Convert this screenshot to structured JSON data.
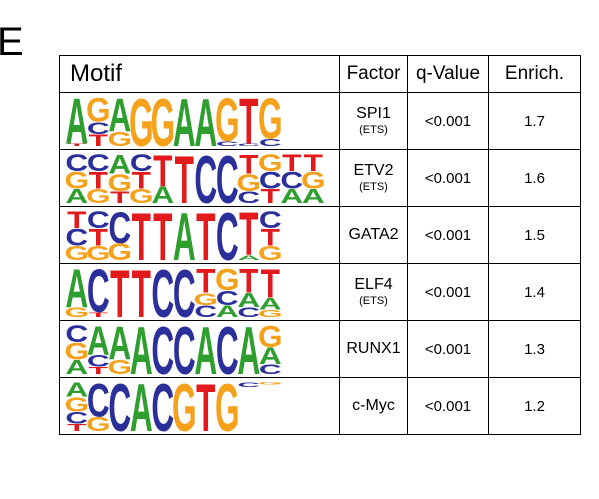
{
  "panel_label": "E",
  "table": {
    "headers": {
      "motif": "Motif",
      "factor": "Factor",
      "qvalue": "q-Value",
      "enrich": "Enrich."
    },
    "rows": [
      {
        "factor": "SPI1",
        "family": "(ETS)",
        "qvalue": "<0.001",
        "enrich": "1.7",
        "logo": [
          [
            [
              "A",
              0.95
            ],
            [
              "T",
              0.05
            ]
          ],
          [
            [
              "G",
              0.5
            ],
            [
              "C",
              0.25
            ],
            [
              "T",
              0.25
            ]
          ],
          [
            [
              "A",
              0.7
            ],
            [
              "G",
              0.3
            ]
          ],
          [
            [
              "G",
              1.0
            ]
          ],
          [
            [
              "G",
              1.0
            ]
          ],
          [
            [
              "A",
              1.0
            ]
          ],
          [
            [
              "A",
              1.0
            ]
          ],
          [
            [
              "G",
              0.9
            ],
            [
              "C",
              0.1
            ]
          ],
          [
            [
              "T",
              0.95
            ],
            [
              "C",
              0.05
            ]
          ],
          [
            [
              "G",
              0.85
            ],
            [
              "C",
              0.15
            ]
          ]
        ]
      },
      {
        "factor": "ETV2",
        "family": "(ETS)",
        "qvalue": "<0.001",
        "enrich": "1.6",
        "logo": [
          [
            [
              "C",
              0.35
            ],
            [
              "G",
              0.35
            ],
            [
              "A",
              0.3
            ]
          ],
          [
            [
              "C",
              0.35
            ],
            [
              "T",
              0.35
            ],
            [
              "G",
              0.3
            ]
          ],
          [
            [
              "A",
              0.4
            ],
            [
              "G",
              0.35
            ],
            [
              "T",
              0.25
            ]
          ],
          [
            [
              "C",
              0.35
            ],
            [
              "T",
              0.35
            ],
            [
              "G",
              0.3
            ]
          ],
          [
            [
              "T",
              0.65
            ],
            [
              "A",
              0.35
            ]
          ],
          [
            [
              "T",
              1.0
            ]
          ],
          [
            [
              "C",
              1.0
            ]
          ],
          [
            [
              "C",
              1.0
            ]
          ],
          [
            [
              "T",
              0.4
            ],
            [
              "G",
              0.35
            ],
            [
              "C",
              0.25
            ]
          ],
          [
            [
              "G",
              0.35
            ],
            [
              "C",
              0.35
            ],
            [
              "T",
              0.3
            ]
          ],
          [
            [
              "T",
              0.35
            ],
            [
              "C",
              0.35
            ],
            [
              "A",
              0.3
            ]
          ],
          [
            [
              "T",
              0.35
            ],
            [
              "G",
              0.35
            ],
            [
              "A",
              0.3
            ]
          ]
        ]
      },
      {
        "factor": "GATA2",
        "family": "",
        "qvalue": "<0.001",
        "enrich": "1.5",
        "logo": [
          [
            [
              "T",
              0.35
            ],
            [
              "C",
              0.35
            ],
            [
              "G",
              0.3
            ]
          ],
          [
            [
              "C",
              0.35
            ],
            [
              "T",
              0.35
            ],
            [
              "G",
              0.3
            ]
          ],
          [
            [
              "C",
              0.65
            ],
            [
              "G",
              0.35
            ]
          ],
          [
            [
              "T",
              1.0
            ]
          ],
          [
            [
              "T",
              1.0
            ]
          ],
          [
            [
              "A",
              1.0
            ]
          ],
          [
            [
              "T",
              1.0
            ]
          ],
          [
            [
              "C",
              1.0
            ]
          ],
          [
            [
              "T",
              0.9
            ],
            [
              "A",
              0.1
            ]
          ],
          [
            [
              "C",
              0.35
            ],
            [
              "T",
              0.35
            ],
            [
              "G",
              0.3
            ]
          ]
        ]
      },
      {
        "factor": "ELF4",
        "family": "(ETS)",
        "qvalue": "<0.001",
        "enrich": "1.4",
        "logo": [
          [
            [
              "A",
              0.8
            ],
            [
              "G",
              0.2
            ]
          ],
          [
            [
              "C",
              0.9
            ],
            [
              "T",
              0.1
            ]
          ],
          [
            [
              "T",
              1.0
            ]
          ],
          [
            [
              "T",
              1.0
            ]
          ],
          [
            [
              "C",
              1.0
            ]
          ],
          [
            [
              "C",
              1.0
            ]
          ],
          [
            [
              "T",
              0.5
            ],
            [
              "G",
              0.25
            ],
            [
              "C",
              0.25
            ]
          ],
          [
            [
              "G",
              0.45
            ],
            [
              "C",
              0.3
            ],
            [
              "A",
              0.25
            ]
          ],
          [
            [
              "T",
              0.5
            ],
            [
              "A",
              0.3
            ],
            [
              "C",
              0.2
            ]
          ],
          [
            [
              "T",
              0.6
            ],
            [
              "A",
              0.25
            ],
            [
              "G",
              0.15
            ]
          ]
        ]
      },
      {
        "factor": "RUNX1",
        "family": "",
        "qvalue": "<0.001",
        "enrich": "1.3",
        "logo": [
          [
            [
              "C",
              0.35
            ],
            [
              "G",
              0.35
            ],
            [
              "A",
              0.3
            ]
          ],
          [
            [
              "A",
              0.6
            ],
            [
              "C",
              0.25
            ],
            [
              "T",
              0.15
            ]
          ],
          [
            [
              "A",
              0.7
            ],
            [
              "G",
              0.3
            ]
          ],
          [
            [
              "A",
              1.0
            ]
          ],
          [
            [
              "C",
              1.0
            ]
          ],
          [
            [
              "C",
              1.0
            ]
          ],
          [
            [
              "A",
              1.0
            ]
          ],
          [
            [
              "C",
              1.0
            ]
          ],
          [
            [
              "A",
              1.0
            ]
          ],
          [
            [
              "G",
              0.45
            ],
            [
              "A",
              0.35
            ],
            [
              "C",
              0.2
            ]
          ]
        ]
      },
      {
        "factor": "c-Myc",
        "family": "",
        "qvalue": "<0.001",
        "enrich": "1.2",
        "logo": [
          [
            [
              "A",
              0.3
            ],
            [
              "G",
              0.3
            ],
            [
              "C",
              0.25
            ],
            [
              "T",
              0.15
            ]
          ],
          [
            [
              "C",
              0.7
            ],
            [
              "G",
              0.3
            ]
          ],
          [
            [
              "C",
              1.0
            ]
          ],
          [
            [
              "A",
              1.0
            ]
          ],
          [
            [
              "C",
              1.0
            ]
          ],
          [
            [
              "G",
              1.0
            ]
          ],
          [
            [
              "T",
              1.0
            ]
          ],
          [
            [
              "G",
              1.0
            ]
          ],
          [
            [
              "C",
              0.1
            ]
          ],
          [
            [
              "G",
              0.05
            ]
          ]
        ]
      }
    ]
  },
  "nucleotide_colors": {
    "A": "#2e9e2e",
    "C": "#2b2f9a",
    "G": "#f5a11c",
    "T": "#e31a1c"
  }
}
